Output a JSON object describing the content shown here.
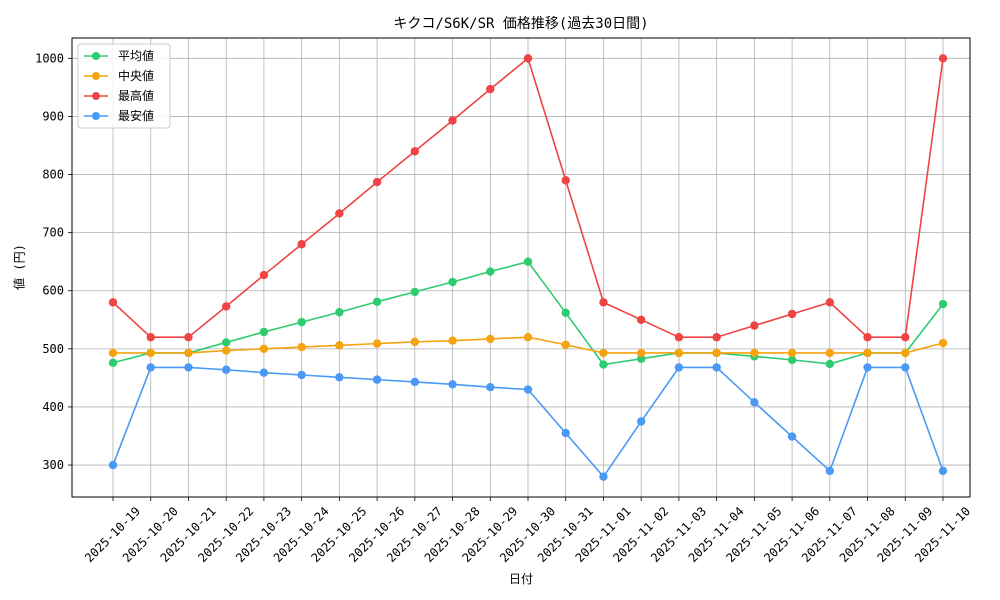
{
  "chart_data": {
    "type": "line",
    "title": "キクコ/S6K/SR 価格推移(過去30日間)",
    "xlabel": "日付",
    "ylabel": "値 (円)",
    "categories": [
      "2025-10-19",
      "2025-10-20",
      "2025-10-21",
      "2025-10-22",
      "2025-10-23",
      "2025-10-24",
      "2025-10-25",
      "2025-10-26",
      "2025-10-27",
      "2025-10-28",
      "2025-10-29",
      "2025-10-30",
      "2025-10-31",
      "2025-11-01",
      "2025-11-02",
      "2025-11-03",
      "2025-11-04",
      "2025-11-05",
      "2025-11-06",
      "2025-11-07",
      "2025-11-08",
      "2025-11-09",
      "2025-11-10"
    ],
    "yticks": [
      300,
      400,
      500,
      600,
      700,
      800,
      900,
      1000
    ],
    "ylim": [
      245,
      1035
    ],
    "grid": true,
    "legend_position": "top-left",
    "series": [
      {
        "name": "平均値",
        "color": "#2ecc71",
        "values": [
          476,
          493,
          493,
          511,
          529,
          546,
          563,
          581,
          598,
          615,
          633,
          650,
          562,
          473,
          483,
          493,
          493,
          487,
          481,
          474,
          493,
          493,
          577
        ]
      },
      {
        "name": "中央値",
        "color": "#f5a30f",
        "values": [
          493,
          493,
          493,
          497,
          500,
          503,
          506,
          509,
          512,
          514,
          517,
          520,
          507,
          493,
          493,
          493,
          493,
          493,
          493,
          493,
          493,
          493,
          510
        ]
      },
      {
        "name": "最高値",
        "color": "#ef4444",
        "values": [
          580,
          520,
          520,
          573,
          627,
          680,
          733,
          787,
          840,
          893,
          947,
          1000,
          790,
          580,
          550,
          520,
          520,
          540,
          560,
          580,
          520,
          520,
          1000
        ]
      },
      {
        "name": "最安値",
        "color": "#4a9af5",
        "values": [
          300,
          468,
          468,
          464,
          459,
          455,
          451,
          447,
          443,
          439,
          434,
          430,
          355,
          280,
          375,
          468,
          468,
          408,
          349,
          290,
          468,
          468,
          290
        ]
      }
    ]
  }
}
